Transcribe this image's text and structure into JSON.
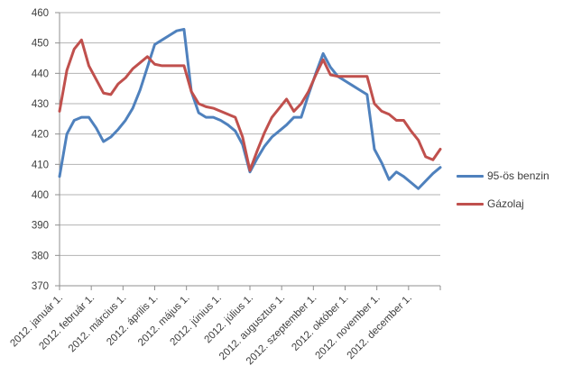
{
  "chart_data": {
    "type": "line",
    "title": "",
    "xlabel": "",
    "ylabel": "",
    "ylim": [
      370,
      460
    ],
    "y_ticks": [
      370,
      380,
      390,
      400,
      410,
      420,
      430,
      440,
      450,
      460
    ],
    "grid": true,
    "legend_position": "right",
    "x_tick_labels": [
      "2012. január 1.",
      "2012. február 1.",
      "2012. március 1.",
      "2012. április 1.",
      "2012. május 1.",
      "2012. június 1.",
      "2012. július 1.",
      "2012. augusztus 1.",
      "2012. szeptember 1.",
      "2012. október 1.",
      "2012. november 1.",
      "2012. december 1."
    ],
    "x_unit": "week",
    "series": [
      {
        "name": "95-ös benzin",
        "color": "#4F81BD",
        "values": [
          406,
          420,
          424.5,
          425.5,
          425.5,
          422,
          417.5,
          419,
          421.5,
          424.5,
          428.5,
          434.5,
          442,
          449.5,
          451,
          452.5,
          454,
          454.5,
          434,
          427,
          425.5,
          425.5,
          424.5,
          423,
          421,
          416.5,
          407.5,
          412,
          416,
          419,
          421,
          423,
          425.5,
          425.5,
          433,
          440,
          446.5,
          442,
          439,
          437.5,
          436,
          434.5,
          433,
          415,
          410.5,
          405,
          407.5,
          406,
          404,
          402,
          404.5,
          407,
          409
        ]
      },
      {
        "name": "Gázolaj",
        "color": "#C0504D",
        "values": [
          427.5,
          441,
          448,
          451,
          442.5,
          438,
          433.5,
          433,
          436.5,
          438.5,
          441.5,
          443.5,
          445.5,
          443,
          442.5,
          442.5,
          442.5,
          442.5,
          434,
          430,
          429,
          428.5,
          427.5,
          426.5,
          425.5,
          419,
          408,
          414.5,
          420.5,
          425.5,
          428.5,
          431.5,
          427.5,
          430,
          434,
          439.5,
          444.5,
          439.5,
          439,
          439,
          439,
          439,
          439,
          430,
          427.5,
          426.5,
          424.5,
          424.5,
          421,
          418,
          412.5,
          411.5,
          415
        ]
      }
    ],
    "colors": {
      "gridline": "#B3B3B3",
      "axis": "#8F8F8F",
      "tick_text": "#3D3D3D",
      "background": "#FFFFFF"
    }
  }
}
